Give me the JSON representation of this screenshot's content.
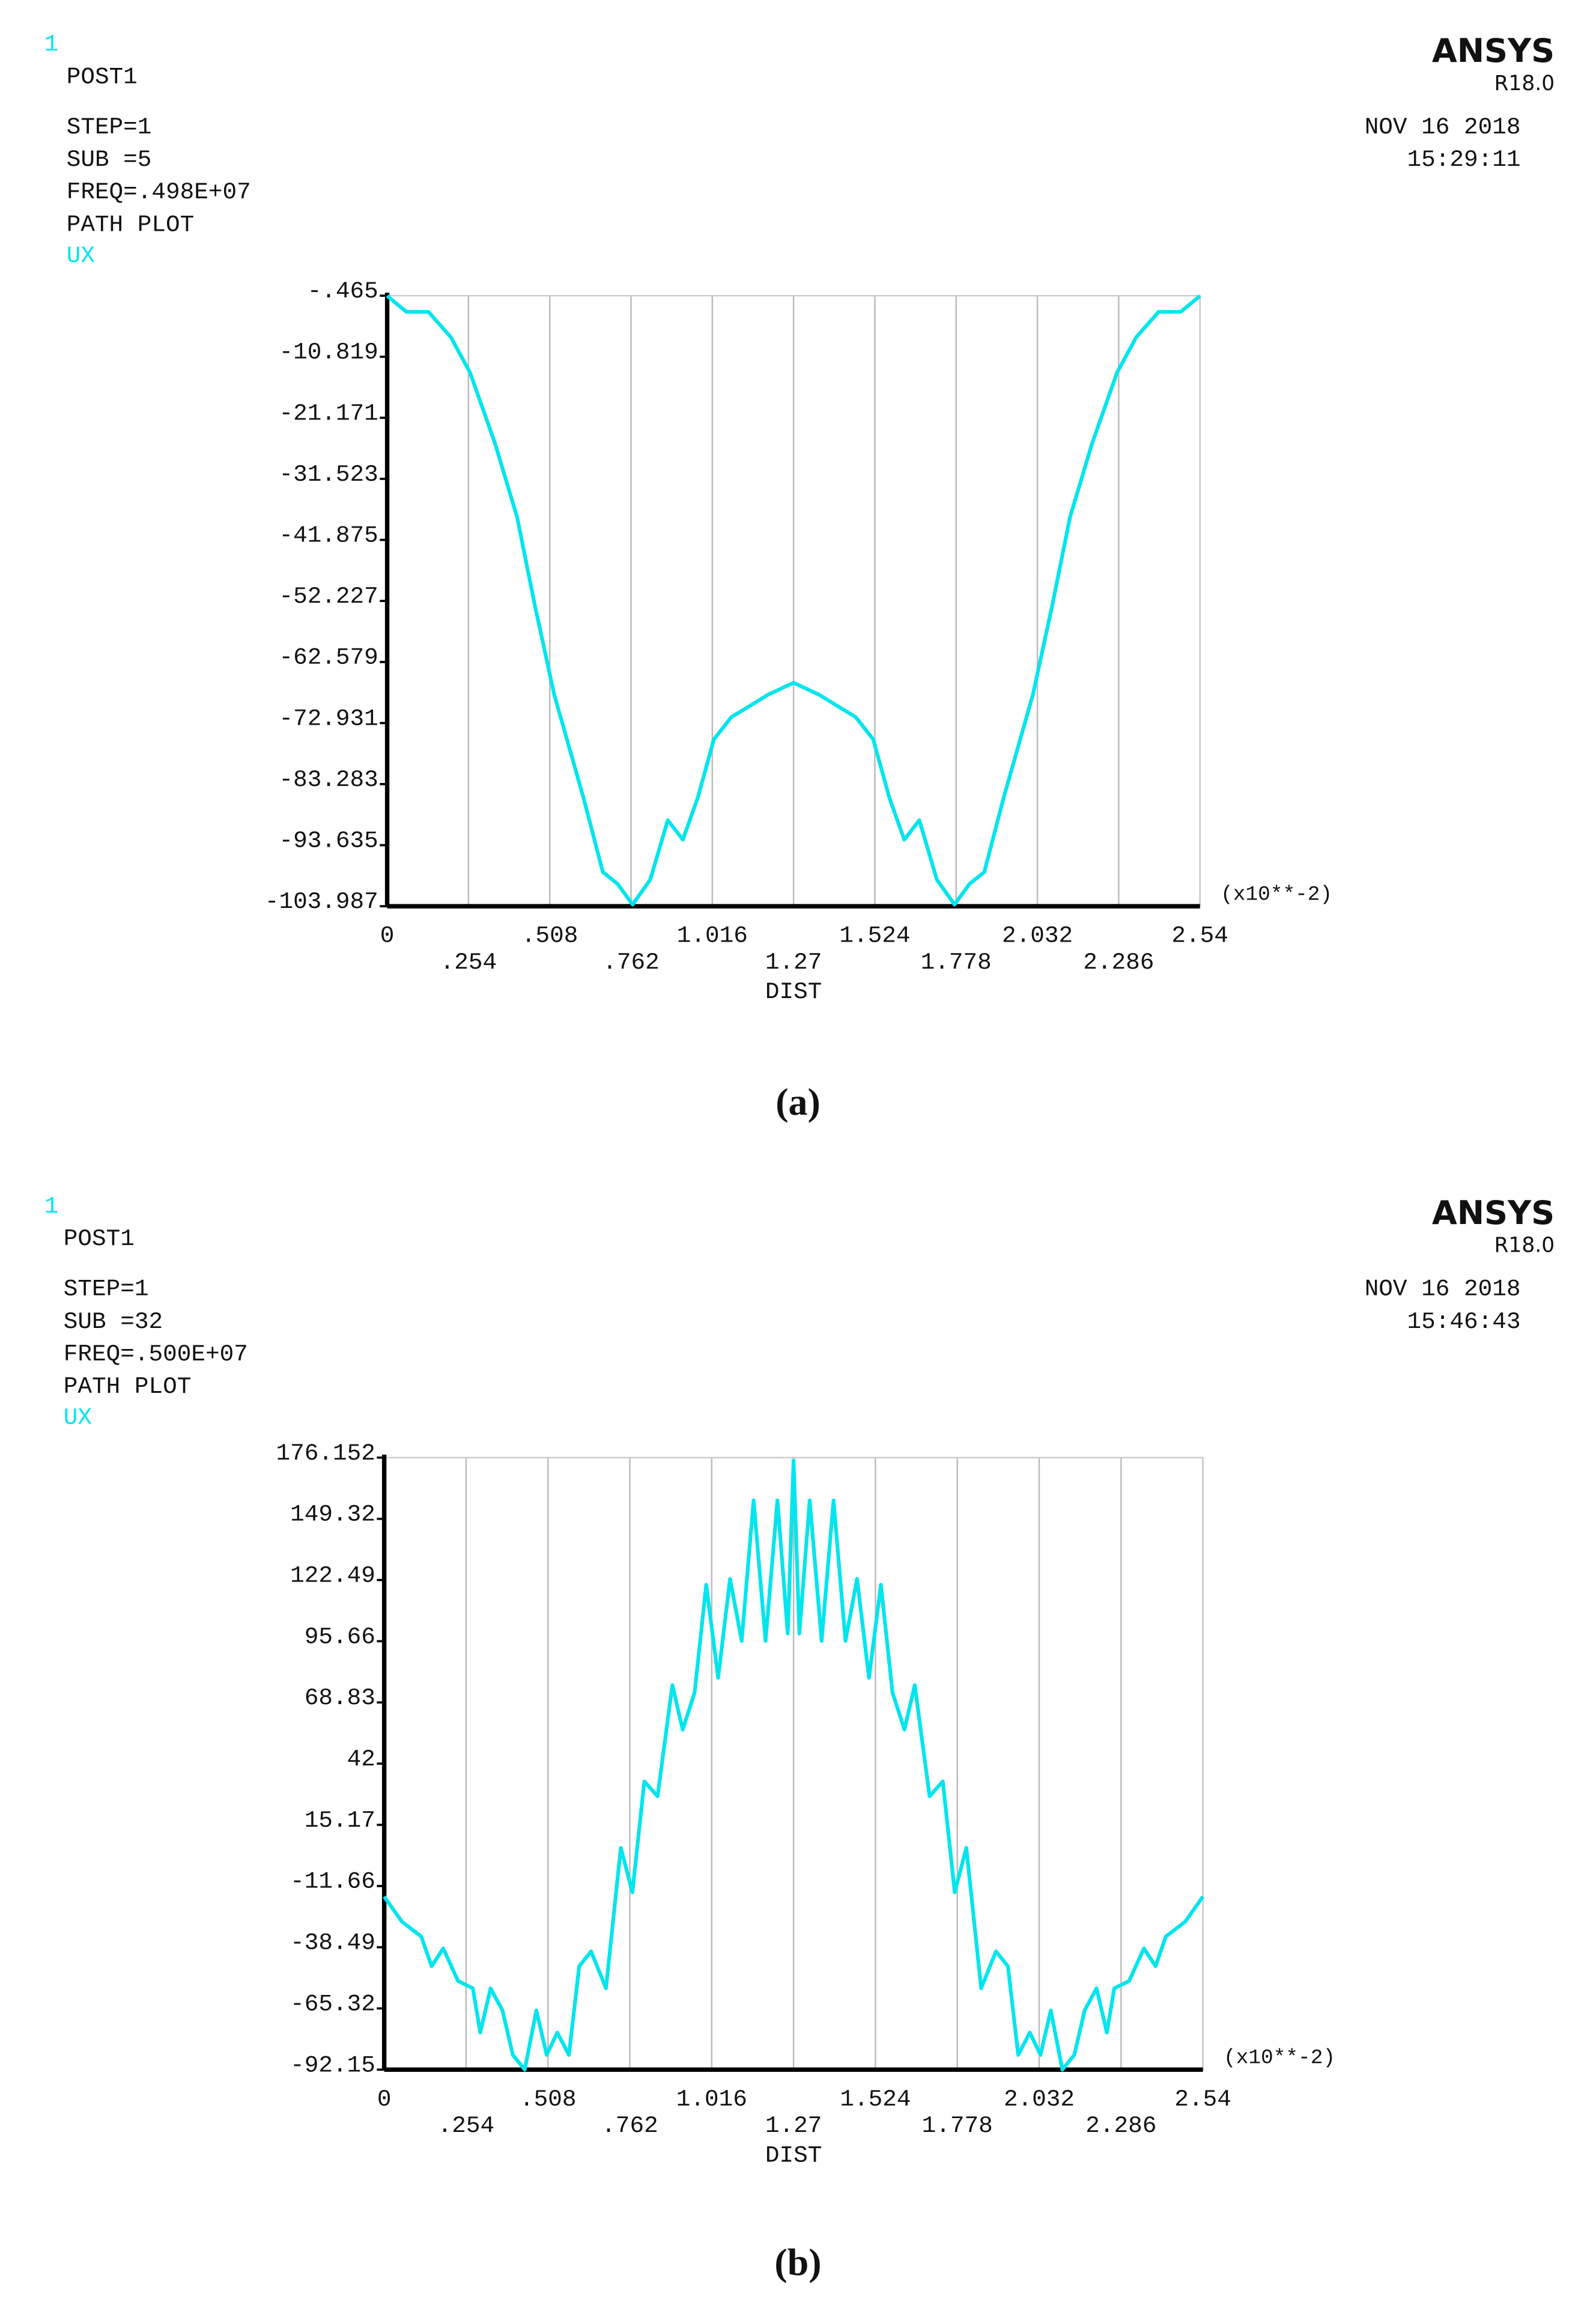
{
  "chart_data": [
    {
      "type": "line",
      "window_number": "1",
      "info_lines": [
        "POST1",
        "STEP=1",
        "SUB =5",
        "FREQ=.498E+07",
        "PATH PLOT"
      ],
      "brand": "ANSYS",
      "version": "R18.0",
      "date": "NOV 16 2018",
      "time": "15:29:11",
      "x_multiplier": "(x10**-2)",
      "xlabel": "DIST",
      "caption": "(a)",
      "grid": "x",
      "xlim": [
        0,
        2.54
      ],
      "xticks": [
        0,
        {
          "value": 0.254,
          "label": ".254"
        },
        {
          "value": 0.508,
          "label": ".508"
        },
        {
          "value": 0.762,
          "label": ".762"
        },
        1.016,
        1.27,
        1.524,
        1.778,
        2.032,
        2.286,
        2.54
      ],
      "ylim": [
        -103.987,
        -0.465
      ],
      "yticks": [
        {
          "value": -0.465,
          "label": "-.465"
        },
        -10.819,
        -21.171,
        -31.523,
        -41.875,
        -52.227,
        -62.579,
        -72.931,
        -83.283,
        -93.635,
        -103.987
      ],
      "x": [
        0,
        0.06,
        0.129,
        0.199,
        0.259,
        0.337,
        0.406,
        0.462,
        0.522,
        0.614,
        0.674,
        0.72,
        0.767,
        0.822,
        0.877,
        0.924,
        0.97,
        1.021,
        1.076,
        1.131,
        1.191,
        1.27,
        1.349,
        1.409,
        1.464,
        1.519,
        1.57,
        1.616,
        1.663,
        1.718,
        1.773,
        1.82,
        1.866,
        1.926,
        2.018,
        2.078,
        2.134,
        2.203,
        2.281,
        2.341,
        2.411,
        2.48,
        2.54
      ],
      "series": [
        {
          "name": "UX",
          "color": "#00e5ee",
          "values": [
            -0.5,
            -3.2,
            -3.2,
            -7.5,
            -13.5,
            -25.5,
            -38.0,
            -53.1,
            -68.1,
            -85.7,
            -98.2,
            -100.2,
            -103.7,
            -99.5,
            -89.4,
            -92.7,
            -85.7,
            -75.7,
            -71.9,
            -70.1,
            -68.1,
            -66.1,
            -68.1,
            -70.1,
            -71.9,
            -75.7,
            -85.7,
            -92.7,
            -89.4,
            -99.5,
            -103.7,
            -100.2,
            -98.2,
            -85.7,
            -68.1,
            -53.1,
            -38.0,
            -25.5,
            -13.5,
            -7.5,
            -3.2,
            -3.2,
            -0.5
          ]
        }
      ]
    },
    {
      "type": "line",
      "window_number": "1",
      "info_lines": [
        "POST1",
        "STEP=1",
        "SUB =32",
        "FREQ=.500E+07",
        "PATH PLOT"
      ],
      "brand": "ANSYS",
      "version": "R18.0",
      "date": "NOV 16 2018",
      "time": "15:46:43",
      "x_multiplier": "(x10**-2)",
      "xlabel": "DIST",
      "caption": "(b)",
      "grid": "x",
      "xlim": [
        0,
        2.54
      ],
      "xticks": [
        0,
        {
          "value": 0.254,
          "label": ".254"
        },
        {
          "value": 0.508,
          "label": ".508"
        },
        {
          "value": 0.762,
          "label": ".762"
        },
        1.016,
        1.27,
        1.524,
        1.778,
        2.032,
        2.286,
        2.54
      ],
      "ylim": [
        -92.15,
        176.152
      ],
      "yticks": [
        176.152,
        149.32,
        122.49,
        95.66,
        68.83,
        42,
        15.17,
        -11.66,
        -38.49,
        -65.32,
        -92.15
      ],
      "x": [
        0,
        0.055,
        0.115,
        0.147,
        0.183,
        0.229,
        0.275,
        0.298,
        0.33,
        0.367,
        0.399,
        0.436,
        0.472,
        0.504,
        0.537,
        0.573,
        0.605,
        0.642,
        0.688,
        0.734,
        0.77,
        0.807,
        0.848,
        0.894,
        0.926,
        0.963,
        0.999,
        1.036,
        1.073,
        1.109,
        1.146,
        1.183,
        1.22,
        1.252,
        1.27,
        1.288,
        1.32,
        1.357,
        1.394,
        1.431,
        1.467,
        1.504,
        1.541,
        1.577,
        1.614,
        1.646,
        1.692,
        1.733,
        1.77,
        1.806,
        1.852,
        1.898,
        1.935,
        1.967,
        2.003,
        2.036,
        2.068,
        2.104,
        2.141,
        2.173,
        2.21,
        2.242,
        2.265,
        2.311,
        2.357,
        2.393,
        2.425,
        2.485,
        2.54
      ],
      "series": [
        {
          "name": "UX",
          "color": "#00e5ee",
          "values": [
            -16.3,
            -27.3,
            -33.8,
            -46.8,
            -39.0,
            -53.3,
            -56.5,
            -75.9,
            -56.5,
            -66.2,
            -85.7,
            -92.15,
            -66.2,
            -85.7,
            -75.9,
            -85.7,
            -46.8,
            -40.3,
            -56.5,
            5.1,
            -14.4,
            34.2,
            27.7,
            76.4,
            56.9,
            73.1,
            120.4,
            79.6,
            123.0,
            95.8,
            157.4,
            95.8,
            157.4,
            99.0,
            174.9,
            99.0,
            157.4,
            95.8,
            157.4,
            95.8,
            123.0,
            79.6,
            120.4,
            73.1,
            56.9,
            76.4,
            27.7,
            34.2,
            -14.4,
            5.1,
            -56.5,
            -40.3,
            -46.8,
            -85.7,
            -75.9,
            -85.7,
            -66.2,
            -92.15,
            -85.7,
            -66.2,
            -56.5,
            -75.9,
            -56.5,
            -53.3,
            -39.0,
            -46.8,
            -33.8,
            -27.3,
            -16.3
          ]
        }
      ]
    }
  ]
}
